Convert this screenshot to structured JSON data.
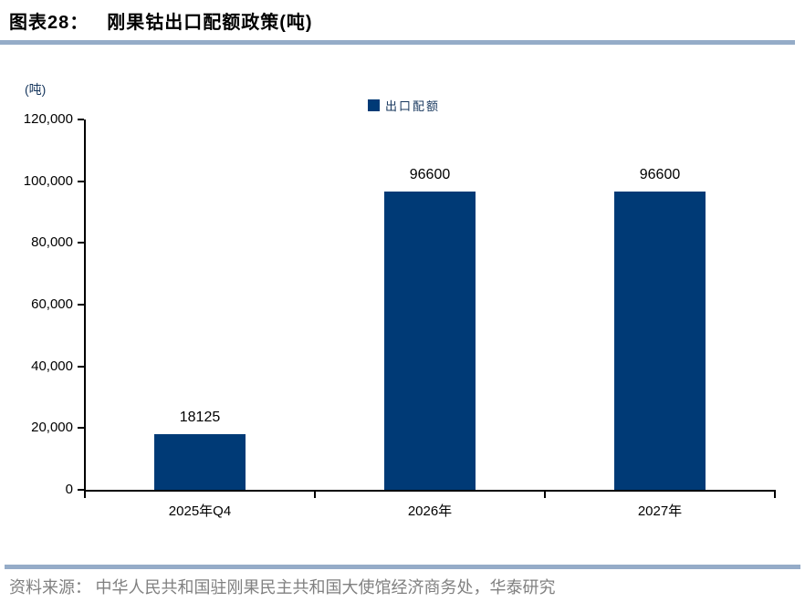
{
  "header": {
    "title_prefix": "图表28：",
    "title": "刚果钴出口配额政策(吨)"
  },
  "chart_data": {
    "type": "bar",
    "title": "刚果钴出口配额政策(吨)",
    "unit_label": "(吨)",
    "legend": [
      "出口配额"
    ],
    "legend_position": "top-center",
    "categories": [
      "2025年Q4",
      "2026年",
      "2027年"
    ],
    "values": [
      18125,
      96600,
      96600
    ],
    "data_labels": [
      "18125",
      "96600",
      "96600"
    ],
    "ylim": [
      0,
      120000
    ],
    "ytick_interval": 20000,
    "ytick_labels": [
      "0",
      "20,000",
      "40,000",
      "60,000",
      "80,000",
      "100,000",
      "120,000"
    ],
    "grid": false,
    "bar_color": "#003A76"
  },
  "colors": {
    "bar": "#003A76",
    "rule": "#95ACC8",
    "axis": "#000000",
    "navy_text": "#17375E",
    "source_text": "#808080"
  },
  "footer": {
    "source": "资料来源： 中华人民共和国驻刚果民主共和国大使馆经济商务处，华泰研究"
  }
}
